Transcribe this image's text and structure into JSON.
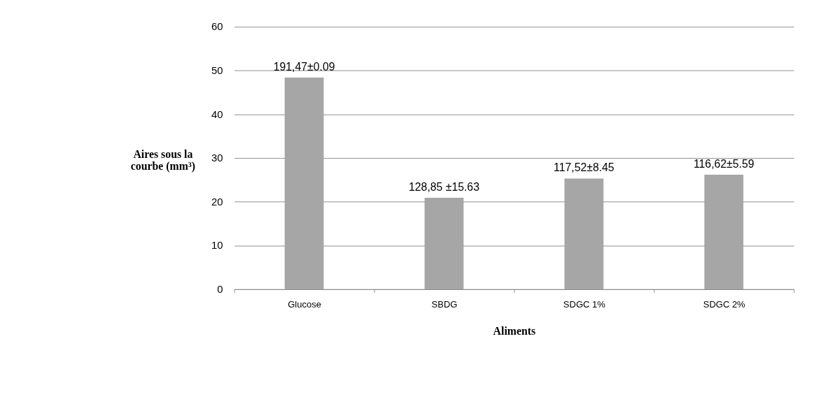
{
  "chart_data": {
    "type": "bar",
    "xlabel": "Aliments",
    "ylabel": "Aires sous la courbe (mm³)",
    "categories": [
      "Glucose",
      "SBDG",
      "SDGC 1%",
      "SDGC 2%"
    ],
    "values": [
      48.4,
      20.9,
      25.3,
      26.2
    ],
    "annotations": [
      {
        "text": "191,47±0.09",
        "x": "Glucose",
        "y": 48.4
      },
      {
        "text": "128,85 ±15.63",
        "x": "SBDG",
        "y": 20.9
      },
      {
        "text": "117,52±8.45",
        "x": "SDGC 1%",
        "y": 25.3
      },
      {
        "text": "116,62±5.59",
        "x": "SDGC 2%",
        "y": 26.2
      }
    ],
    "color": "#a6a6a6",
    "ylim": [
      0,
      60
    ],
    "yticks": [
      0,
      10,
      20,
      30,
      40,
      50,
      60
    ],
    "grid": "y"
  }
}
